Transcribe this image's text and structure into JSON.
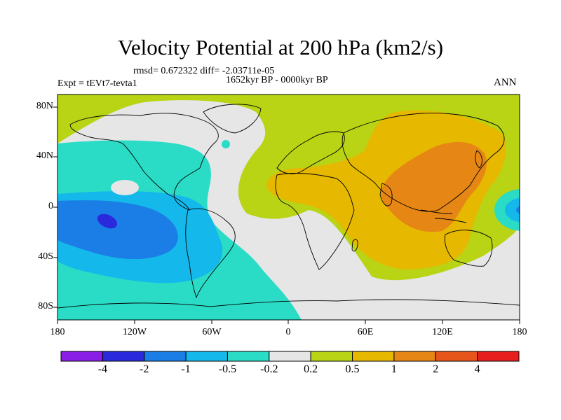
{
  "title": "Velocity Potential at 200 hPa (km2/s)",
  "stats_line": "rmsd= 0.672322 diff= -2.03711e-05",
  "period_label": "1652kyr BP - 0000kyr BP",
  "experiment_label": "Expt = tEVt7-tevta1",
  "season_label": "ANN",
  "map": {
    "projection": "cylindrical equidistant",
    "lon_range": [
      -180,
      180
    ],
    "lat_range": [
      -90,
      90
    ],
    "lat_ticks": [
      "80N",
      "40N",
      "0",
      "40S",
      "80S"
    ],
    "lon_ticks": [
      "180",
      "120W",
      "60W",
      "0",
      "60E",
      "120E",
      "180"
    ]
  },
  "colorbar": {
    "colors": [
      "#8a1ee6",
      "#2a2adc",
      "#1a7ee6",
      "#14b8ea",
      "#2adcc6",
      "#e6e6e6",
      "#b8d414",
      "#e6b800",
      "#e68614",
      "#e6561a",
      "#e61e1e"
    ],
    "labels": [
      "-4",
      "-2",
      "-1",
      "-0.5",
      "-0.2",
      "0.2",
      "0.5",
      "1",
      "2",
      "4"
    ]
  }
}
